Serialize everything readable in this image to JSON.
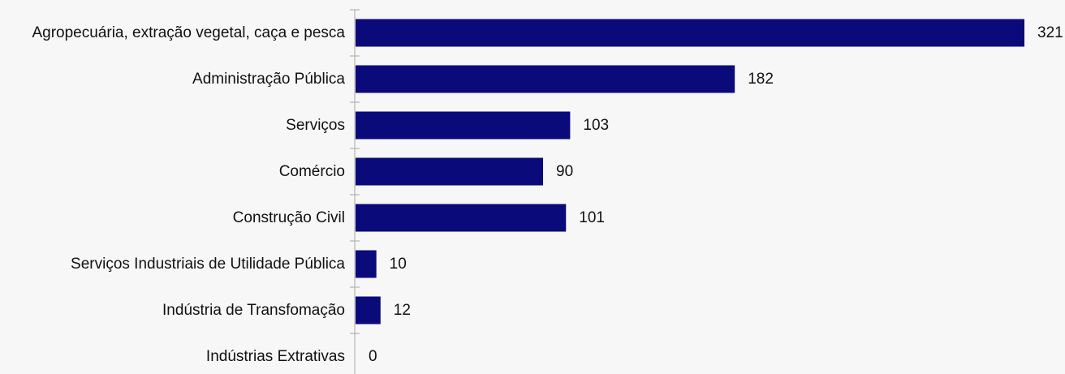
{
  "chart_data": {
    "type": "bar",
    "orientation": "horizontal",
    "title": "",
    "xlabel": "",
    "ylabel": "",
    "categories": [
      "Agropecuária, extração vegetal, caça e pesca",
      "Administração Pública",
      "Serviços",
      "Comércio",
      "Construção Civil",
      "Serviços Industriais de Utilidade Pública",
      "Indústria de Transfomação",
      "Indústrias Extrativas"
    ],
    "values": [
      321,
      182,
      103,
      90,
      101,
      10,
      12,
      0
    ],
    "value_labels": [
      "321",
      "182",
      "103",
      "90",
      "101",
      "10",
      "12",
      "0"
    ],
    "xlim": [
      0,
      321
    ],
    "grid": false,
    "legend": "none",
    "bar_color": "#0a0a7a",
    "axis_color": "#b3b3b3",
    "background_color": "#f7f7f7"
  }
}
